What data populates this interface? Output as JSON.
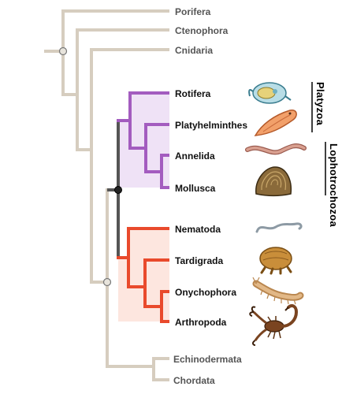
{
  "taxa": [
    {
      "name": "Porifera",
      "group": "outgroup"
    },
    {
      "name": "Ctenophora",
      "group": "outgroup"
    },
    {
      "name": "Cnidaria",
      "group": "outgroup"
    },
    {
      "name": "Rotifera",
      "group": "lophotrochozoa",
      "icon": "rotifer-icon"
    },
    {
      "name": "Platyhelminthes",
      "group": "lophotrochozoa",
      "icon": "flatworm-icon"
    },
    {
      "name": "Annelida",
      "group": "lophotrochozoa",
      "icon": "earthworm-icon"
    },
    {
      "name": "Mollusca",
      "group": "lophotrochozoa",
      "icon": "clam-icon"
    },
    {
      "name": "Nematoda",
      "group": "ecdysozoa",
      "icon": "roundworm-icon"
    },
    {
      "name": "Tardigrada",
      "group": "ecdysozoa",
      "icon": "tardigrade-icon"
    },
    {
      "name": "Onychophora",
      "group": "ecdysozoa",
      "icon": "velvet-worm-icon"
    },
    {
      "name": "Arthropoda",
      "group": "ecdysozoa",
      "icon": "scorpion-icon"
    },
    {
      "name": "Echinodermata",
      "group": "deuterostome"
    },
    {
      "name": "Chordata",
      "group": "deuterostome"
    }
  ],
  "brackets": {
    "platyzoa": "Platyzoa",
    "lophotrochozoa": "Lophotrochozoa"
  },
  "colors": {
    "base_branch": "#d6cdbf",
    "lophotrochozoa_branch": "#a35cbf",
    "lophotrochozoa_fill": "#efe2f6",
    "ecdysozoa_branch": "#e94a2c",
    "ecdysozoa_fill": "#fde6df",
    "protostome_stem": "#555555",
    "outgroup_text": "#555555",
    "ingroup_text": "#111111"
  }
}
